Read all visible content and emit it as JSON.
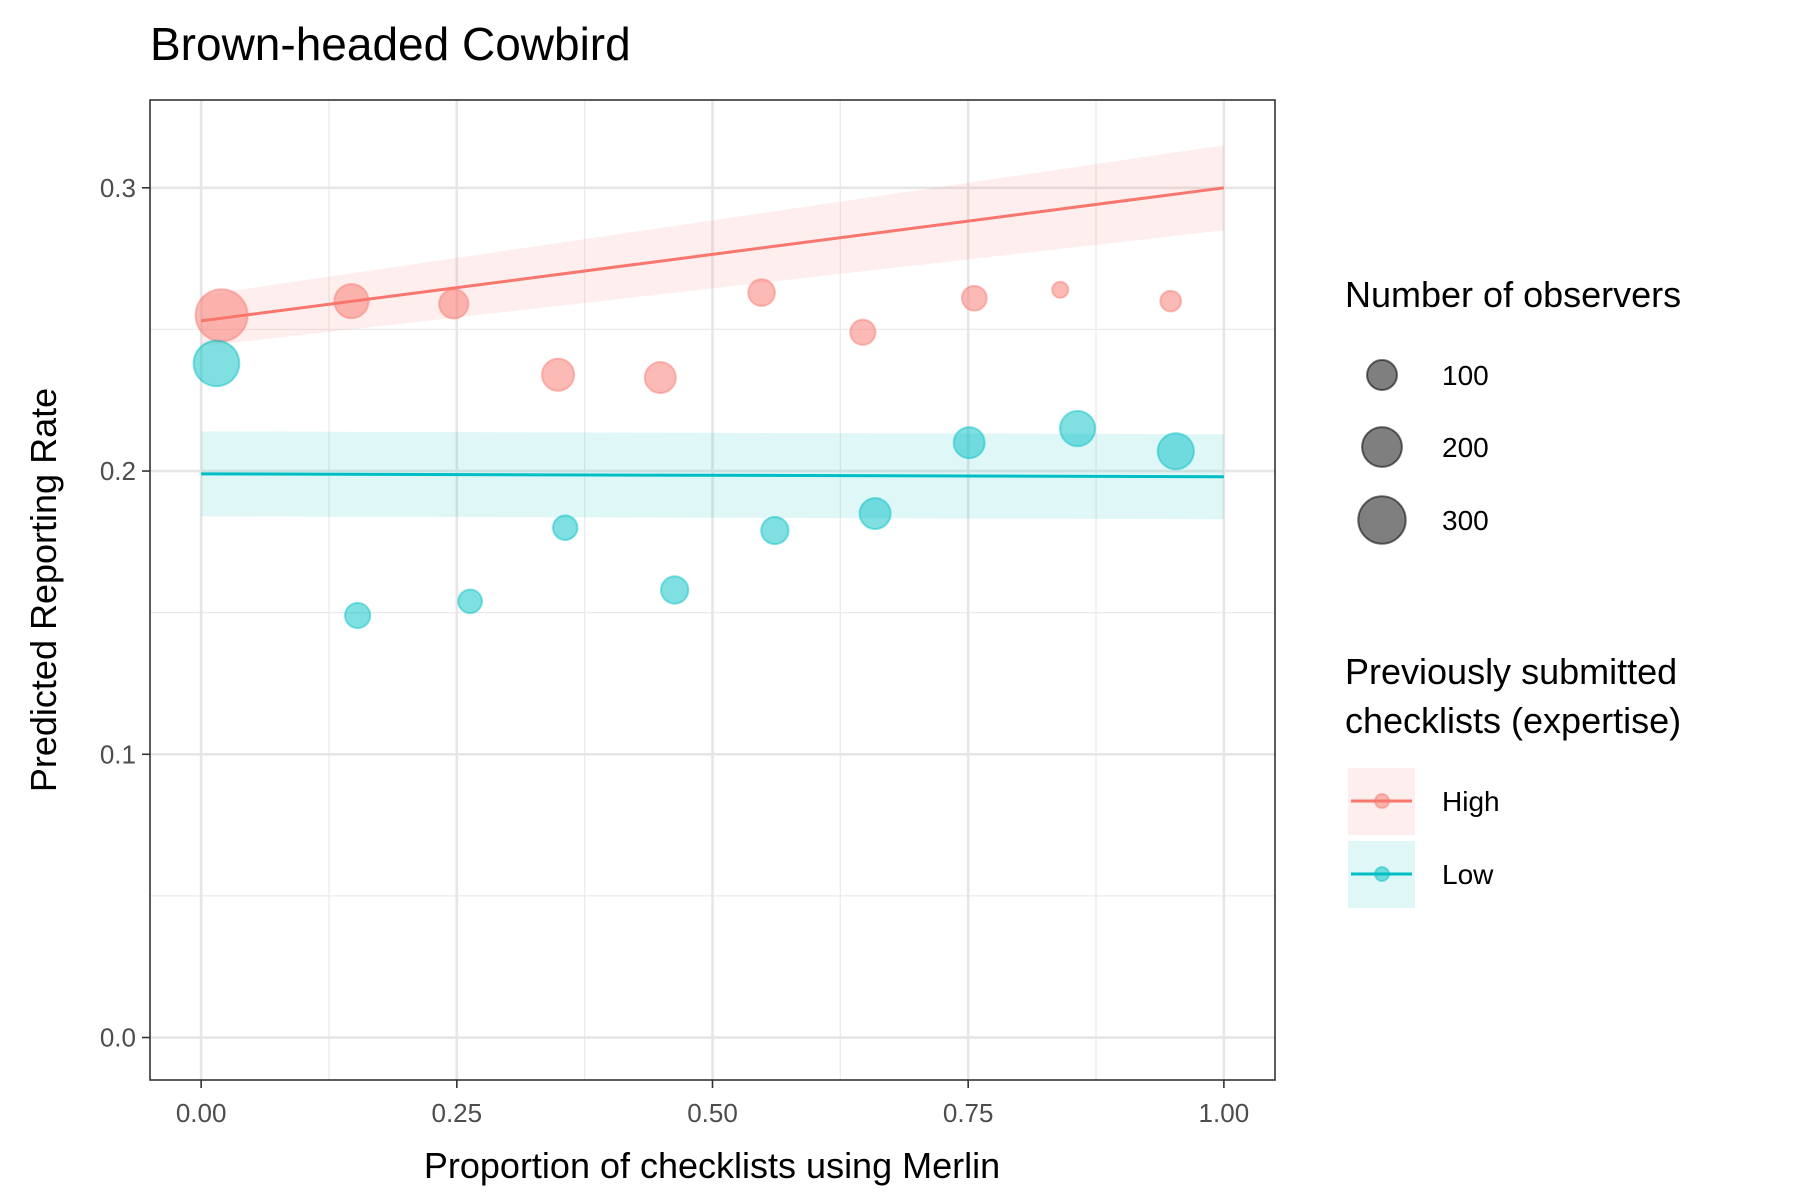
{
  "chart_data": {
    "type": "scatter",
    "title": "Brown-headed Cowbird",
    "xlabel": "Proportion of checklists using Merlin",
    "ylabel": "Predicted Reporting Rate",
    "xlim": [
      -0.05,
      1.05
    ],
    "ylim": [
      -0.015,
      0.331
    ],
    "x_ticks": [
      0.0,
      0.25,
      0.5,
      0.75,
      1.0
    ],
    "x_tick_labels": [
      "0.00",
      "0.25",
      "0.50",
      "0.75",
      "1.00"
    ],
    "y_ticks": [
      0.0,
      0.1,
      0.2,
      0.3
    ],
    "y_tick_labels": [
      "0.0",
      "0.1",
      "0.2",
      "0.3"
    ],
    "grid": true,
    "size_legend": {
      "title": "Number of observers",
      "values": [
        100,
        200,
        300
      ],
      "labels": [
        "100",
        "200",
        "300"
      ]
    },
    "color_legend": {
      "title_lines": [
        "Previously submitted",
        "checklists (expertise)"
      ]
    },
    "series": [
      {
        "name": "High",
        "color": "#F8766D",
        "points": [
          {
            "x": 0.02,
            "y": 0.255,
            "observers": 370
          },
          {
            "x": 0.147,
            "y": 0.26,
            "observers": 140
          },
          {
            "x": 0.247,
            "y": 0.259,
            "observers": 95
          },
          {
            "x": 0.349,
            "y": 0.234,
            "observers": 120
          },
          {
            "x": 0.449,
            "y": 0.233,
            "observers": 110
          },
          {
            "x": 0.548,
            "y": 0.263,
            "observers": 75
          },
          {
            "x": 0.647,
            "y": 0.249,
            "observers": 65
          },
          {
            "x": 0.756,
            "y": 0.261,
            "observers": 62
          },
          {
            "x": 0.84,
            "y": 0.264,
            "observers": 18
          },
          {
            "x": 0.948,
            "y": 0.26,
            "observers": 38
          }
        ],
        "fit": {
          "x": [
            0.0,
            1.0
          ],
          "y": [
            0.253,
            0.3
          ],
          "ci_lower": [
            0.244,
            0.285
          ],
          "ci_upper": [
            0.262,
            0.315
          ]
        }
      },
      {
        "name": "Low",
        "color": "#00BFC4",
        "points": [
          {
            "x": 0.015,
            "y": 0.238,
            "observers": 275
          },
          {
            "x": 0.153,
            "y": 0.149,
            "observers": 65
          },
          {
            "x": 0.263,
            "y": 0.154,
            "observers": 55
          },
          {
            "x": 0.356,
            "y": 0.18,
            "observers": 60
          },
          {
            "x": 0.463,
            "y": 0.158,
            "observers": 80
          },
          {
            "x": 0.561,
            "y": 0.179,
            "observers": 80
          },
          {
            "x": 0.659,
            "y": 0.185,
            "observers": 110
          },
          {
            "x": 0.751,
            "y": 0.21,
            "observers": 110
          },
          {
            "x": 0.857,
            "y": 0.215,
            "observers": 150
          },
          {
            "x": 0.953,
            "y": 0.207,
            "observers": 160
          }
        ],
        "fit": {
          "x": [
            0.0,
            1.0
          ],
          "y": [
            0.199,
            0.198
          ],
          "ci_lower": [
            0.184,
            0.183
          ],
          "ci_upper": [
            0.214,
            0.213
          ]
        }
      }
    ]
  }
}
